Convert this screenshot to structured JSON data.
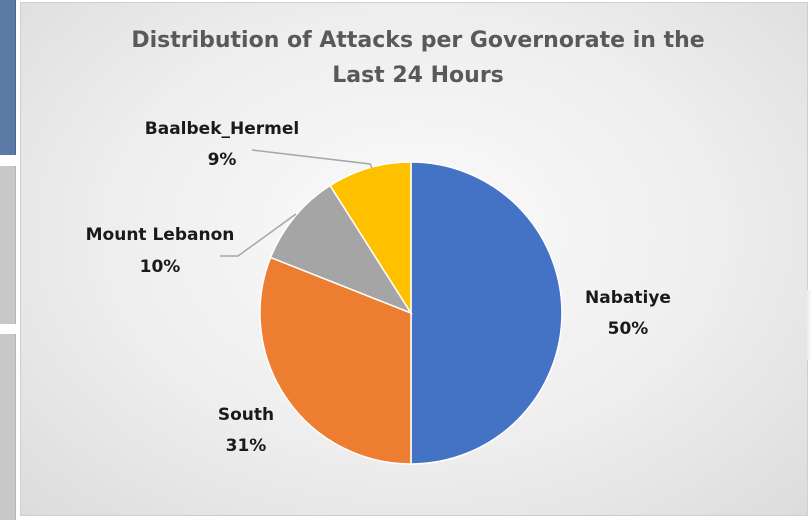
{
  "chart_data": {
    "type": "pie",
    "title": "Distribution of Attacks per Governorate in the Last 24 Hours",
    "title_lines": [
      "Distribution of Attacks per Governorate in the",
      "Last 24 Hours"
    ],
    "slices": [
      {
        "label": "Nabatiye",
        "value": 50,
        "pct_label": "50%",
        "color": "#4472c4"
      },
      {
        "label": "South",
        "value": 31,
        "pct_label": "31%",
        "color": "#ed7d31"
      },
      {
        "label": "Mount Lebanon",
        "value": 10,
        "pct_label": "10%",
        "color": "#a5a5a5"
      },
      {
        "label": "Baalbek_Hermel",
        "value": 9,
        "pct_label": "9%",
        "color": "#ffc000"
      }
    ],
    "start_angle": "12 o'clock",
    "direction": "clockwise",
    "legend": "none"
  }
}
